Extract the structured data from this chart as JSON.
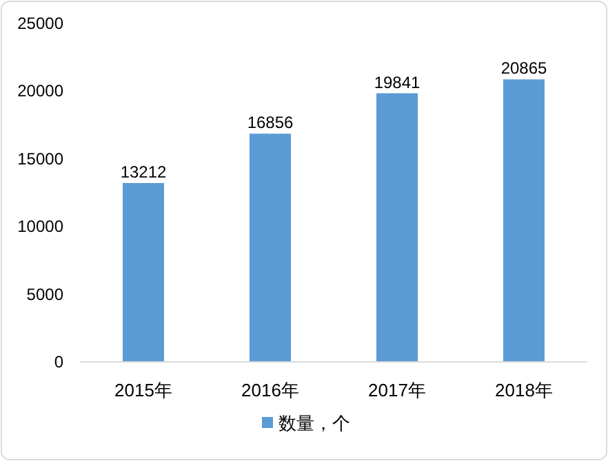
{
  "chart_data": {
    "type": "bar",
    "categories": [
      "2015年",
      "2016年",
      "2017年",
      "2018年"
    ],
    "series": [
      {
        "name": "数量，个",
        "color": "#5b9bd5",
        "values": [
          13212,
          16856,
          19841,
          20865
        ]
      }
    ],
    "ylim": [
      0,
      25000
    ],
    "yticks": [
      0,
      5000,
      10000,
      15000,
      20000,
      25000
    ],
    "data_labels": true,
    "legend": "bottom"
  }
}
